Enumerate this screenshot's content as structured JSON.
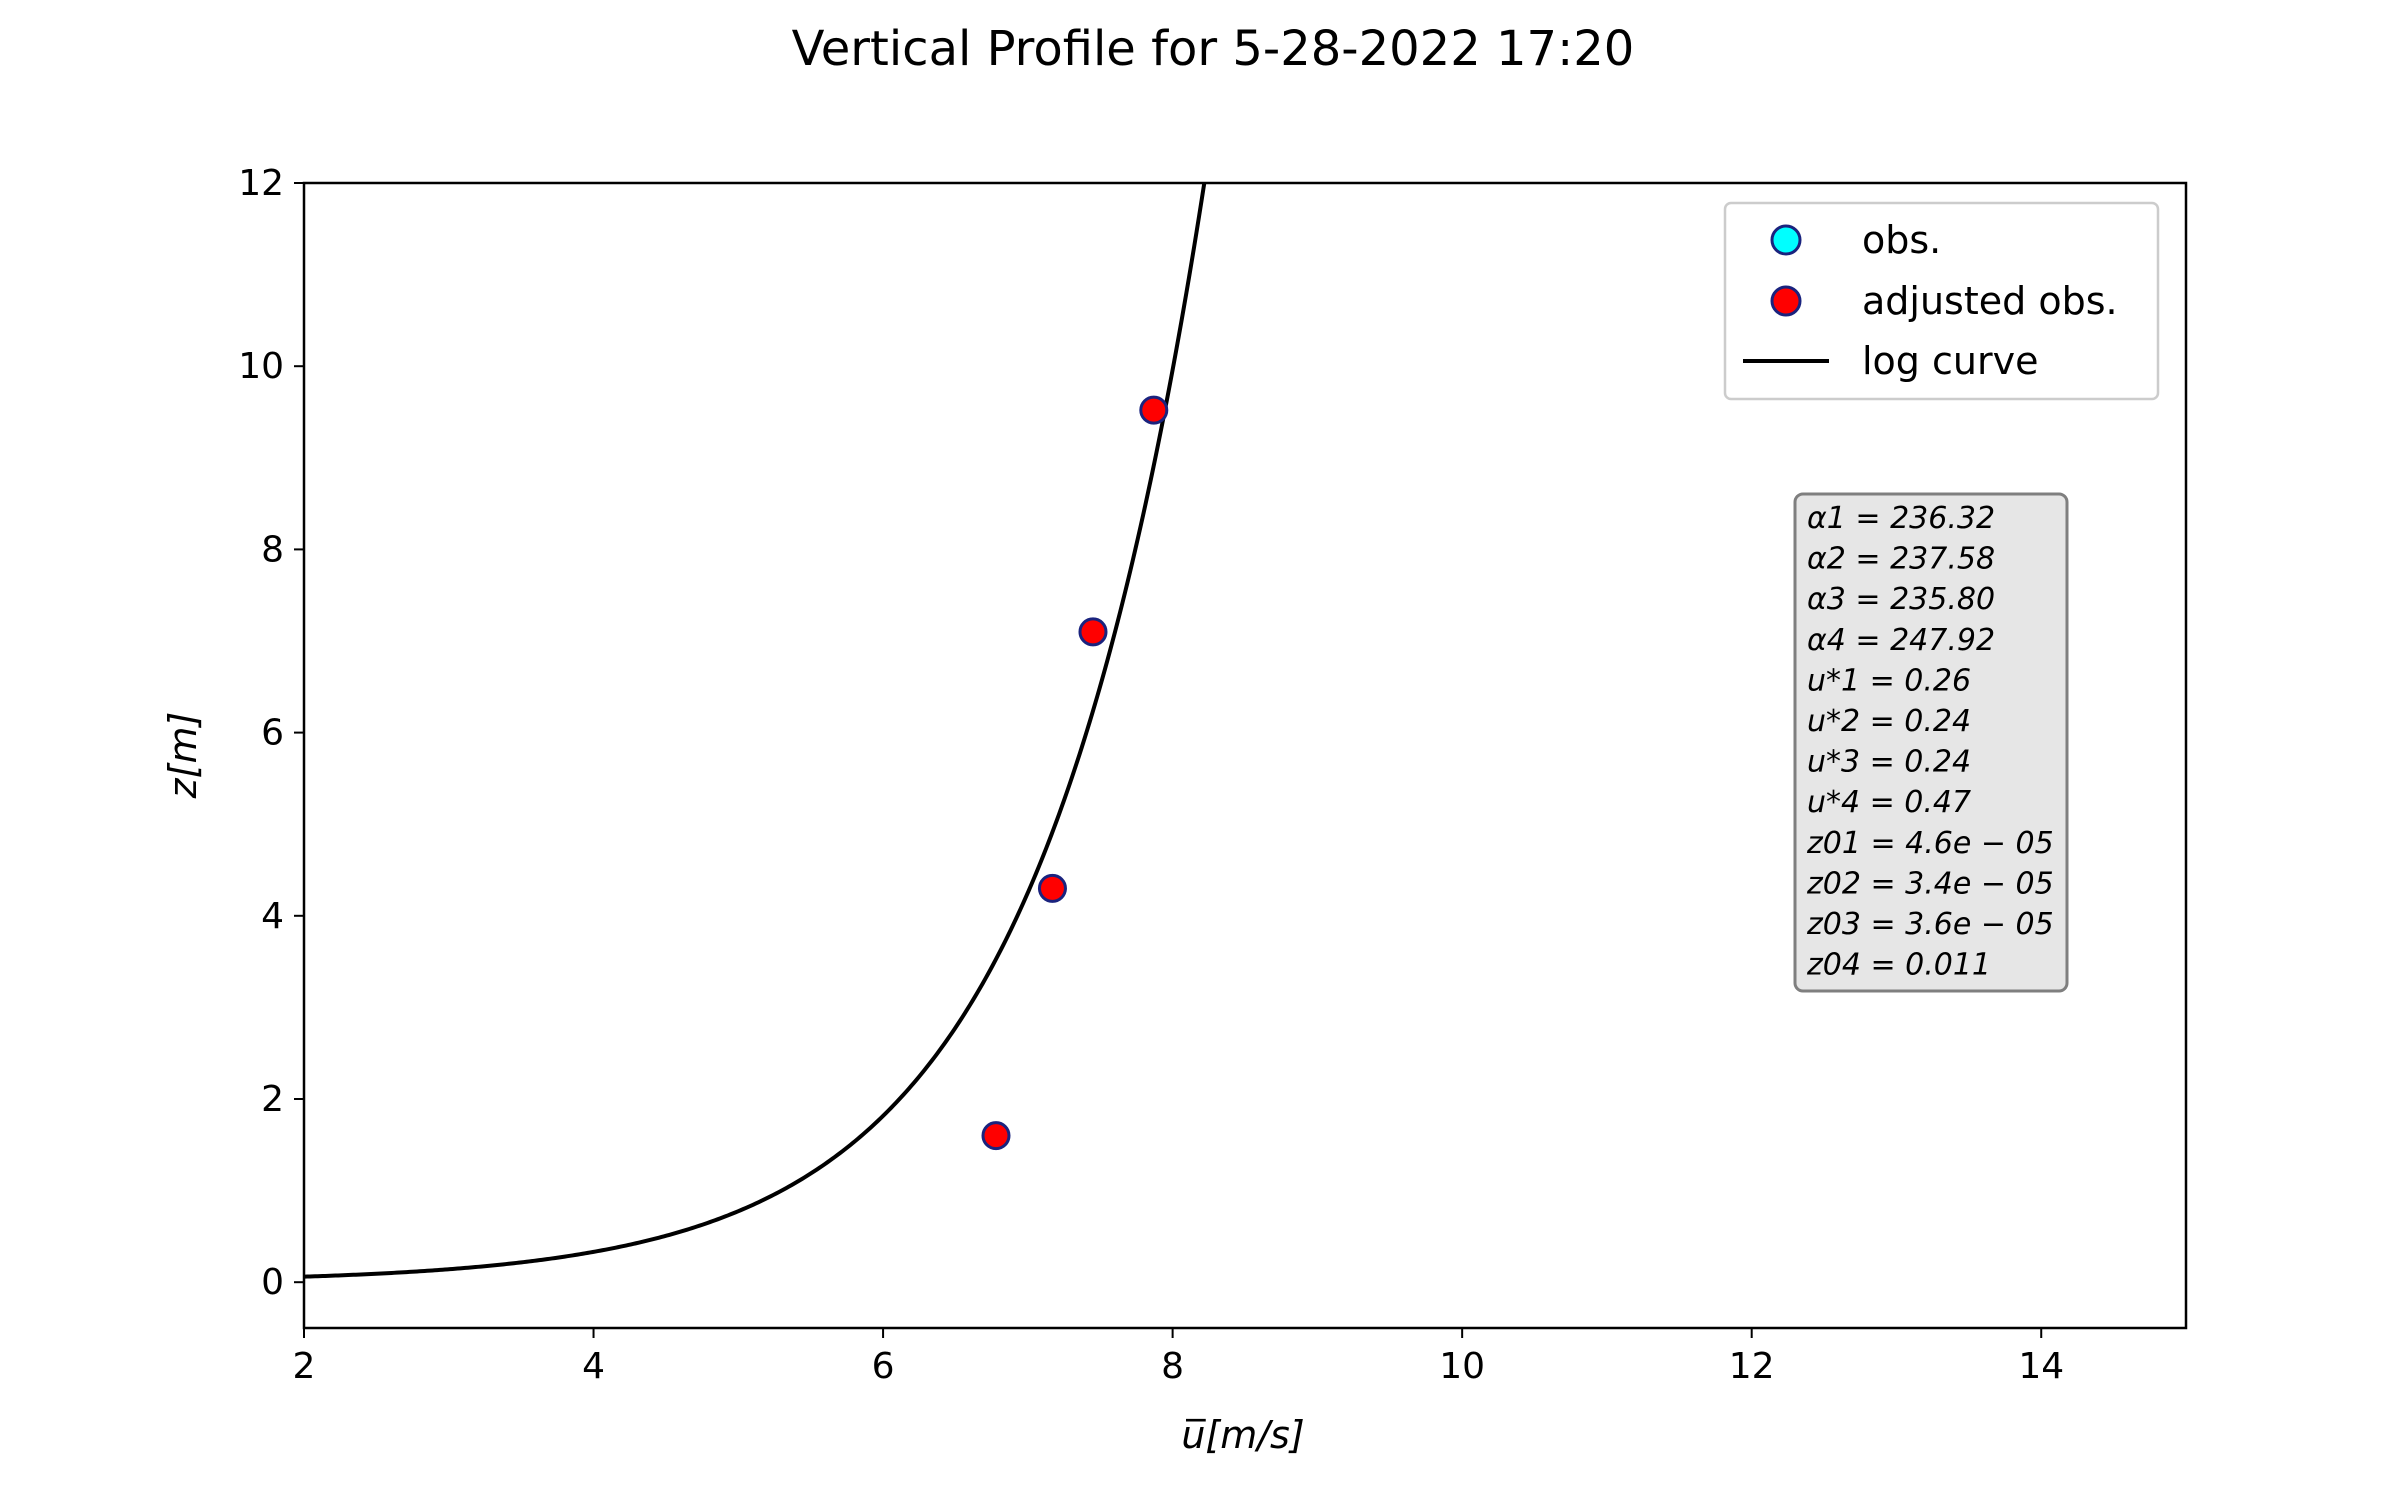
{
  "chart_data": {
    "type": "scatter",
    "title": "Vertical Profile for 5-28-2022 17:20",
    "xlabel": "u̅[m/s]",
    "ylabel": "z[m]",
    "xlim": [
      2,
      15
    ],
    "ylim": [
      -0.5,
      12
    ],
    "xticks": [
      2,
      4,
      6,
      8,
      10,
      12,
      14
    ],
    "yticks": [
      0,
      2,
      4,
      6,
      8,
      10,
      12
    ],
    "grid": false,
    "legend_position": "top-right",
    "legend": [
      "obs.",
      "adjusted obs.",
      "log curve"
    ],
    "series": [
      {
        "name": "obs.",
        "kind": "scatter",
        "color": "#00FFFF",
        "edge_color": "#1a237e",
        "points": []
      },
      {
        "name": "adjusted obs.",
        "kind": "scatter",
        "color": "#FF0000",
        "edge_color": "#1a237e",
        "points": [
          {
            "x": 6.78,
            "y": 1.6
          },
          {
            "x": 7.17,
            "y": 4.3
          },
          {
            "x": 7.45,
            "y": 7.1
          },
          {
            "x": 7.87,
            "y": 9.52
          }
        ]
      },
      {
        "name": "log curve",
        "kind": "line",
        "color": "#000000",
        "model": "u = (u_star/0.4) * ln(z/z0)",
        "u_star": 0.47,
        "z0": 0.011,
        "z_range": [
          0.03,
          12
        ]
      }
    ],
    "annotation": {
      "background": "#e6e6e6",
      "lines": [
        "α1 = 236.32",
        "α2 = 237.58",
        "α3 = 235.80",
        "α4 = 247.92",
        "u*1 = 0.26",
        "u*2 = 0.24",
        "u*3 = 0.24",
        "u*4 = 0.47",
        "z01 = 4.6e − 05",
        "z02 = 3.4e − 05",
        "z03 = 3.6e − 05",
        "z04 = 0.011"
      ]
    }
  }
}
